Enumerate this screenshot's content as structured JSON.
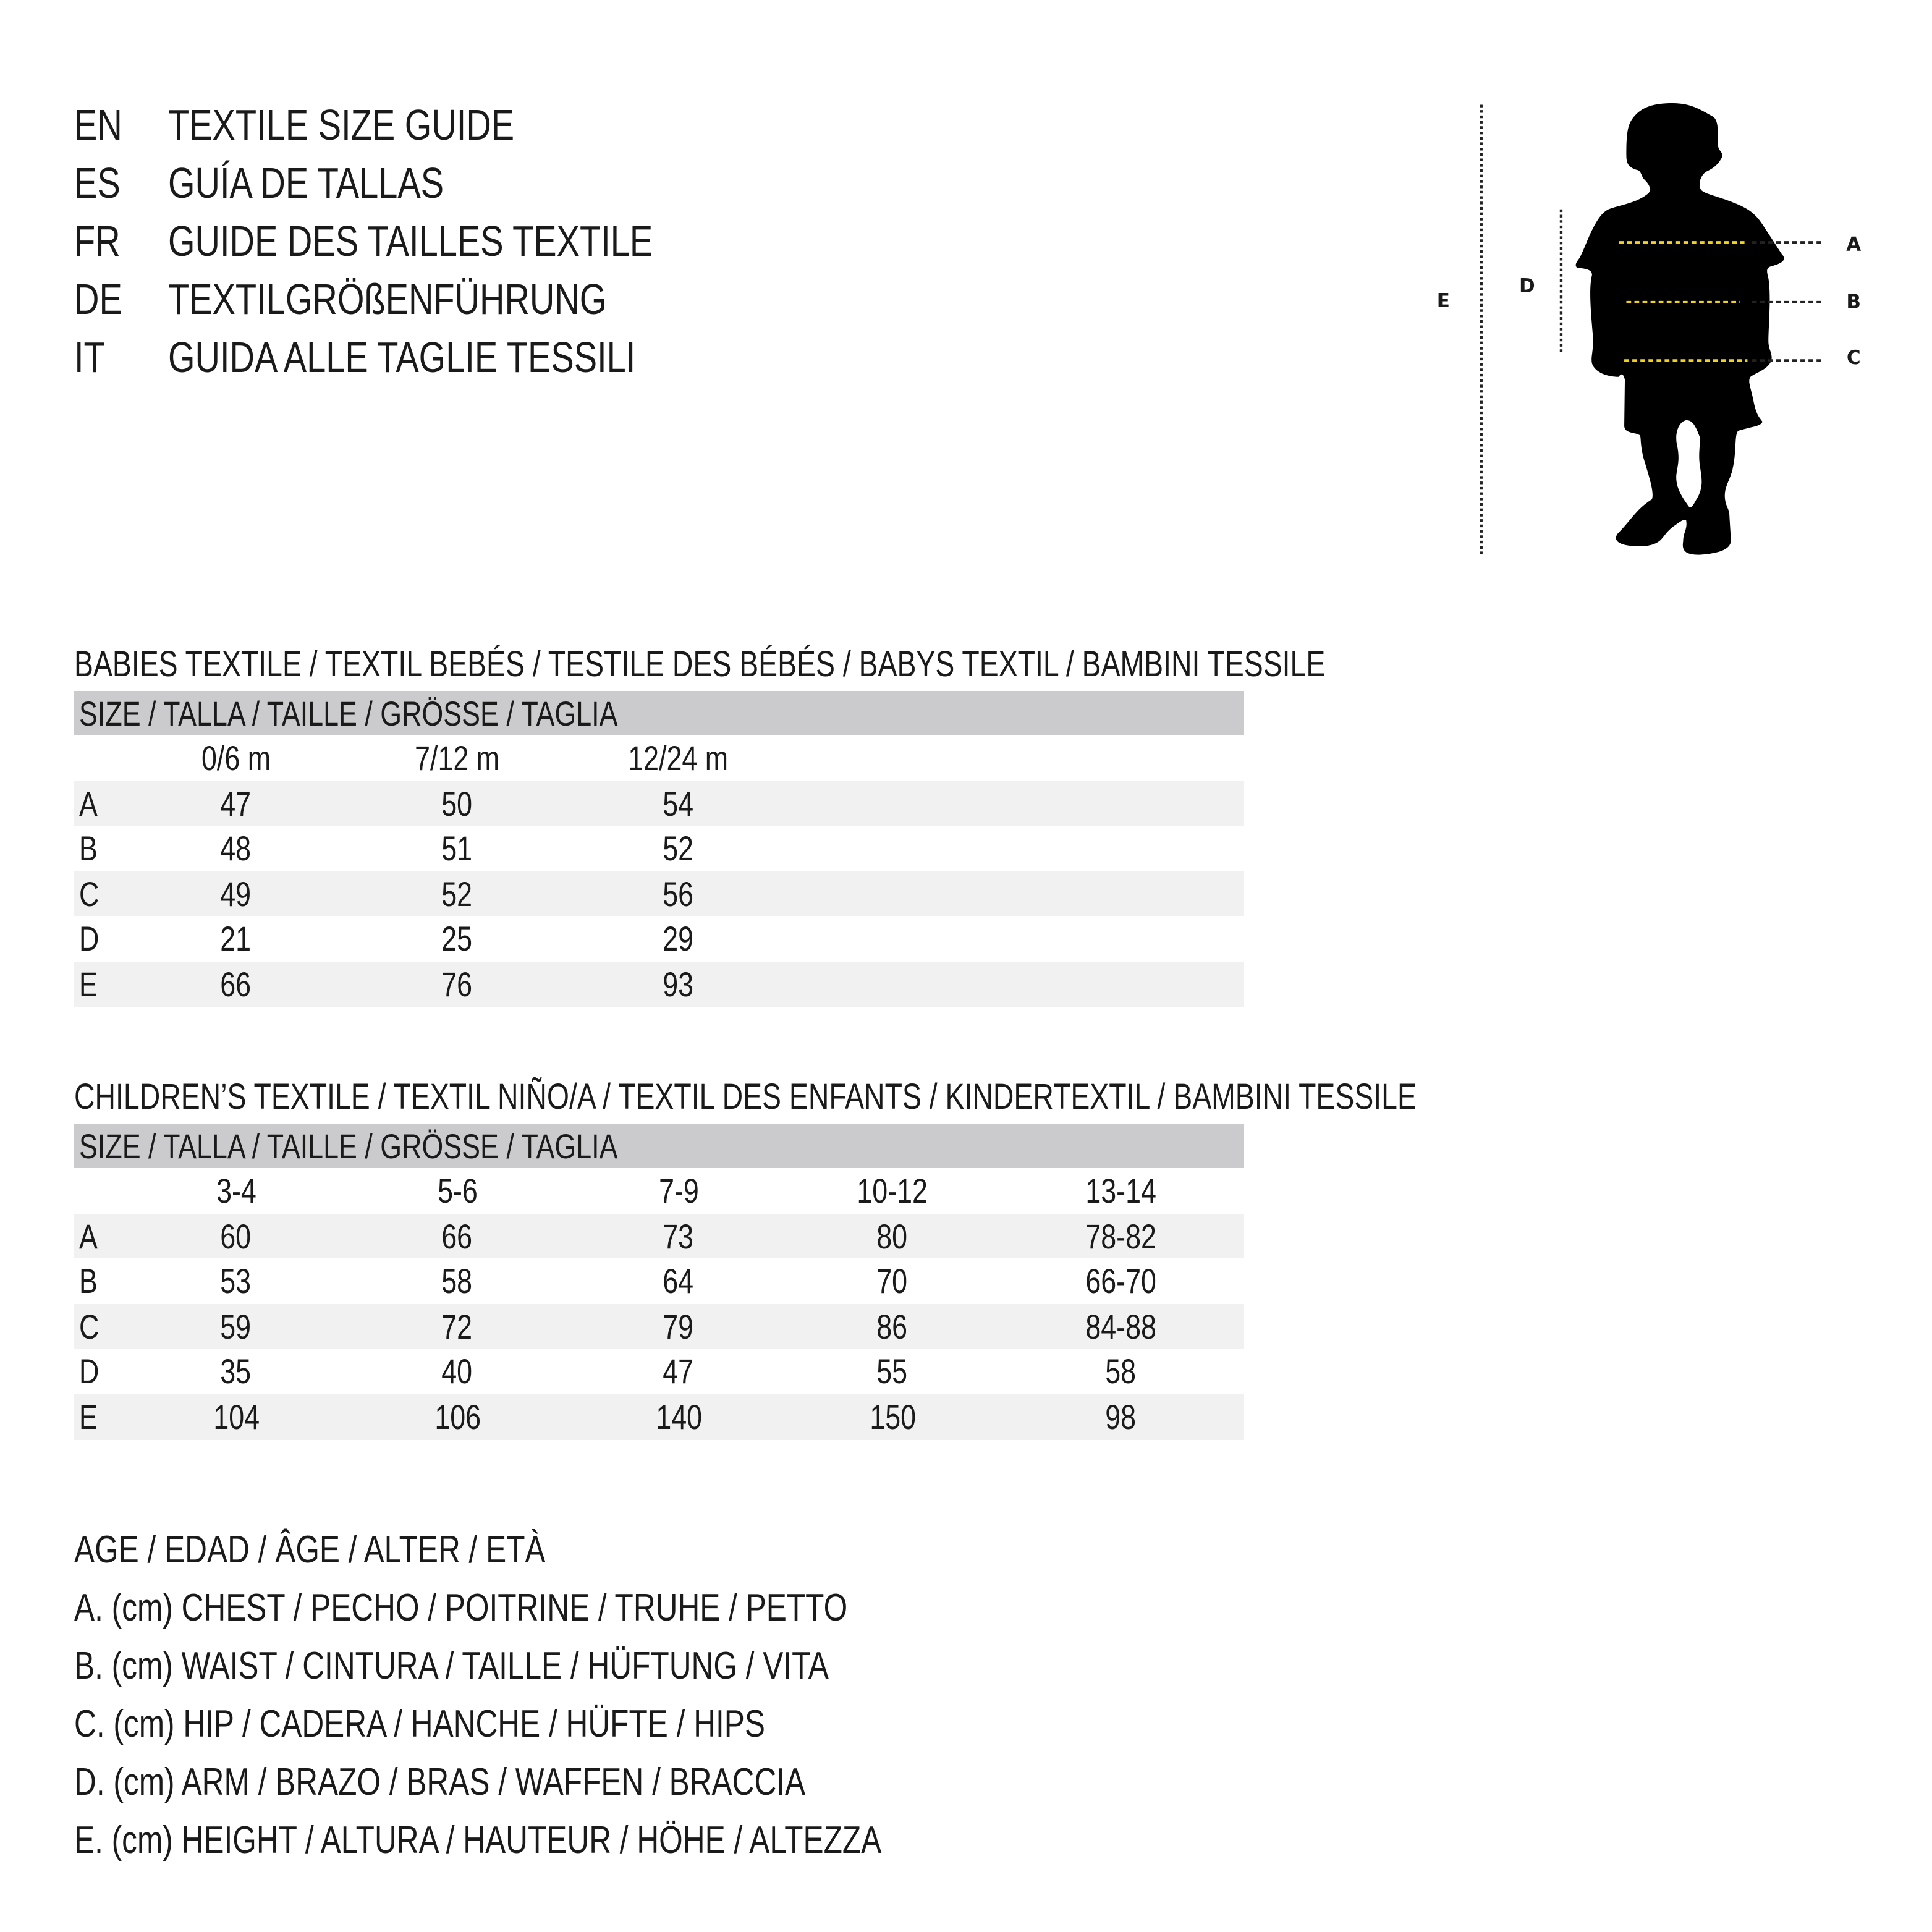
{
  "titles": [
    {
      "code": "EN",
      "text": "TEXTILE SIZE GUIDE"
    },
    {
      "code": "ES",
      "text": "GUÍA DE TALLAS"
    },
    {
      "code": "FR",
      "text": "GUIDE DES TAILLES TEXTILE"
    },
    {
      "code": "DE",
      "text": "TEXTILGRÖßENFÜHRUNG"
    },
    {
      "code": "IT",
      "text": "GUIDA ALLE TAGLIE TESSILI"
    }
  ],
  "babies": {
    "heading": "BABIES TEXTILE / TEXTIL BEBÉS / TESTILE DES BÉBÉS / BABYS TEXTIL / BAMBINI TESSILE",
    "size_header": "SIZE / TALLA / TAILLE / GRÖSSE / TAGLIA",
    "columns": [
      "0/6 m",
      "7/12 m",
      "12/24 m"
    ],
    "rows": [
      {
        "label": "A",
        "values": [
          "47",
          "50",
          "54"
        ]
      },
      {
        "label": "B",
        "values": [
          "48",
          "51",
          "52"
        ]
      },
      {
        "label": "C",
        "values": [
          "49",
          "52",
          "56"
        ]
      },
      {
        "label": "D",
        "values": [
          "21",
          "25",
          "29"
        ]
      },
      {
        "label": "E",
        "values": [
          "66",
          "76",
          "93"
        ]
      }
    ]
  },
  "children": {
    "heading": "CHILDREN’S TEXTILE / TEXTIL NIÑO/A / TEXTIL DES ENFANTS / KINDERTEXTIL / BAMBINI TESSILE",
    "size_header": "SIZE / TALLA / TAILLE / GRÖSSE / TAGLIA",
    "columns": [
      "3-4",
      "5-6",
      "7-9",
      "10-12",
      "13-14"
    ],
    "rows": [
      {
        "label": "A",
        "values": [
          "60",
          "66",
          "73",
          "80",
          "78-82"
        ]
      },
      {
        "label": "B",
        "values": [
          "53",
          "58",
          "64",
          "70",
          "66-70"
        ]
      },
      {
        "label": "C",
        "values": [
          "59",
          "72",
          "79",
          "86",
          "84-88"
        ]
      },
      {
        "label": "D",
        "values": [
          "35",
          "40",
          "47",
          "55",
          "58"
        ]
      },
      {
        "label": "E",
        "values": [
          "104",
          "106",
          "140",
          "150",
          "98"
        ]
      }
    ]
  },
  "legend": [
    "AGE / EDAD / ÂGE / ALTER / ETÀ",
    "A. (cm) CHEST / PECHO / POITRINE / TRUHE / PETTO",
    "B. (cm) WAIST / CINTURA / TAILLE / HÜFTUNG / VITA",
    "C. (cm) HIP / CADERA / HANCHE / HÜFTE / HIPS",
    "D. (cm) ARM / BRAZO / BRAS / WAFFEN / BRACCIA",
    "E. (cm) HEIGHT / ALTURA / HAUTEUR / HÖHE / ALTEZZA"
  ],
  "figure": {
    "icon": "child-silhouette",
    "labels": {
      "A": "A",
      "B": "B",
      "C": "C",
      "D": "D",
      "E": "E"
    },
    "colors": {
      "measure_line": "#f2d31b",
      "silhouette": "#000000",
      "guide": "#222222",
      "table_header": "#cbcbcd",
      "row_shade": "#f1f1f1"
    }
  }
}
